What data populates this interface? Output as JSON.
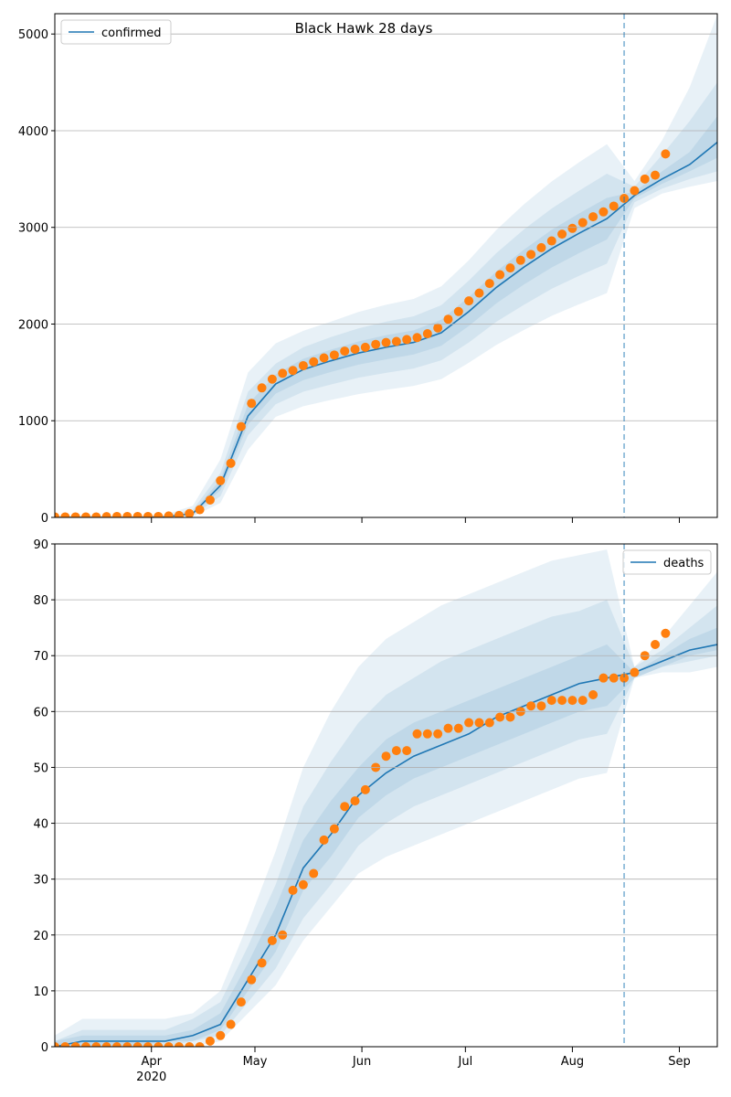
{
  "chart_data": [
    {
      "type": "line",
      "title": "Black Hawk 28 days",
      "x": [
        64,
        72,
        80,
        88,
        96,
        104,
        112,
        120,
        128,
        136,
        144,
        152,
        160,
        168,
        176,
        184,
        192,
        200,
        208,
        216,
        224,
        232,
        240,
        248,
        256
      ],
      "series": [
        {
          "name": "confirmed",
          "color": "#1f77b4",
          "values": [
            0,
            0,
            0,
            0,
            5,
            40,
            330,
            1050,
            1380,
            1530,
            1620,
            1700,
            1760,
            1810,
            1910,
            2130,
            2380,
            2590,
            2780,
            2940,
            3090,
            3330,
            3500,
            3650,
            3880
          ]
        }
      ],
      "bands": [
        {
          "lower": [
            0,
            0,
            0,
            0,
            0,
            10,
            150,
            700,
            1040,
            1150,
            1215,
            1275,
            1320,
            1360,
            1430,
            1600,
            1785,
            1940,
            2085,
            2205,
            2320,
            3200,
            3350,
            3420,
            3480
          ],
          "upper": [
            20,
            20,
            20,
            20,
            30,
            120,
            600,
            1500,
            1800,
            1930,
            2025,
            2125,
            2200,
            2260,
            2390,
            2660,
            2975,
            3240,
            3475,
            3675,
            3860,
            3480,
            3900,
            4450,
            5200
          ]
        },
        {
          "lower": [
            0,
            0,
            0,
            0,
            0,
            20,
            220,
            850,
            1170,
            1300,
            1375,
            1445,
            1495,
            1540,
            1625,
            1810,
            2025,
            2200,
            2365,
            2500,
            2625,
            3260,
            3400,
            3500,
            3580
          ],
          "upper": [
            10,
            10,
            10,
            10,
            15,
            80,
            460,
            1300,
            1590,
            1760,
            1865,
            1955,
            2025,
            2080,
            2195,
            2450,
            2735,
            2980,
            3195,
            3380,
            3555,
            3420,
            3750,
            4100,
            4500
          ]
        },
        {
          "lower": [
            0,
            0,
            0,
            0,
            2,
            30,
            280,
            960,
            1280,
            1420,
            1505,
            1580,
            1635,
            1685,
            1775,
            1980,
            2215,
            2410,
            2585,
            2735,
            2875,
            3300,
            3450,
            3580,
            3720
          ],
          "upper": [
            5,
            5,
            5,
            5,
            10,
            55,
            390,
            1170,
            1480,
            1640,
            1735,
            1820,
            1885,
            1935,
            2045,
            2280,
            2545,
            2770,
            2975,
            3145,
            3305,
            3370,
            3580,
            3780,
            4150
          ]
        }
      ],
      "band_color": "#1f77b4",
      "points": {
        "color": "#ff7f0e",
        "x": [
          64,
          67,
          70,
          73,
          76,
          79,
          82,
          85,
          88,
          91,
          94,
          97,
          100,
          103,
          106,
          109,
          112,
          115,
          118,
          121,
          124,
          127,
          130,
          133,
          136,
          139,
          142,
          145,
          148,
          151,
          154,
          157,
          160,
          163,
          166,
          169,
          172,
          175,
          178,
          181,
          184,
          187,
          190,
          193,
          196,
          199,
          202,
          205,
          208,
          211,
          214,
          217,
          220,
          223,
          226,
          229,
          232,
          235,
          238,
          241
        ],
        "values": [
          5,
          5,
          5,
          5,
          5,
          8,
          10,
          10,
          10,
          10,
          10,
          15,
          20,
          40,
          80,
          180,
          380,
          560,
          940,
          1180,
          1340,
          1430,
          1490,
          1520,
          1570,
          1610,
          1650,
          1680,
          1720,
          1740,
          1760,
          1790,
          1810,
          1820,
          1840,
          1860,
          1900,
          1960,
          2050,
          2130,
          2240,
          2320,
          2420,
          2510,
          2580,
          2660,
          2720,
          2790,
          2860,
          2930,
          2990,
          3050,
          3110,
          3160,
          3220,
          3300,
          3380,
          3500,
          3540,
          3760
        ]
      },
      "vline": 229,
      "xlim": [
        64,
        256
      ],
      "ylim": [
        0,
        5210
      ],
      "yticks": [
        0,
        1000,
        2000,
        3000,
        4000,
        5000
      ],
      "grid": true,
      "legend": "upper left"
    },
    {
      "type": "line",
      "x": [
        64,
        72,
        80,
        88,
        96,
        104,
        112,
        120,
        128,
        136,
        144,
        152,
        160,
        168,
        176,
        184,
        192,
        200,
        208,
        216,
        224,
        232,
        240,
        248,
        256
      ],
      "series": [
        {
          "name": "deaths",
          "color": "#1f77b4",
          "values": [
            0,
            1,
            1,
            1,
            1,
            2,
            4,
            12,
            20,
            32,
            38,
            45,
            49,
            52,
            54,
            56,
            59,
            61,
            63,
            65,
            66,
            67,
            69,
            71,
            72
          ]
        }
      ],
      "bands": [
        {
          "lower": [
            0,
            0,
            0,
            0,
            0,
            0,
            1,
            6,
            11,
            19,
            25,
            31,
            34,
            36,
            38,
            40,
            42,
            44,
            46,
            48,
            49,
            66,
            67,
            67,
            68
          ],
          "upper": [
            2,
            5,
            5,
            5,
            5,
            6,
            10,
            22,
            35,
            50,
            60,
            68,
            73,
            76,
            79,
            81,
            83,
            85,
            87,
            88,
            89,
            68,
            73,
            79,
            85
          ]
        },
        {
          "lower": [
            0,
            0,
            0,
            0,
            0,
            1,
            2,
            8,
            14,
            23,
            29,
            36,
            40,
            43,
            45,
            47,
            49,
            51,
            53,
            55,
            56,
            66,
            68,
            69,
            70
          ],
          "upper": [
            1,
            3,
            3,
            3,
            3,
            5,
            8,
            18,
            29,
            43,
            51,
            58,
            63,
            66,
            69,
            71,
            73,
            75,
            77,
            78,
            80,
            68,
            71,
            75,
            79
          ]
        },
        {
          "lower": [
            0,
            0,
            0,
            0,
            1,
            1,
            3,
            10,
            17,
            28,
            34,
            41,
            45,
            48,
            50,
            52,
            54,
            56,
            58,
            60,
            61,
            66,
            68,
            70,
            71
          ],
          "upper": [
            1,
            2,
            2,
            2,
            2,
            3,
            6,
            15,
            25,
            37,
            44,
            50,
            55,
            58,
            60,
            62,
            64,
            66,
            68,
            70,
            72,
            67,
            70,
            73,
            75
          ]
        }
      ],
      "band_color": "#1f77b4",
      "points": {
        "color": "#ff7f0e",
        "x": [
          64,
          67,
          70,
          73,
          76,
          79,
          82,
          85,
          88,
          91,
          94,
          97,
          100,
          103,
          106,
          109,
          112,
          115,
          118,
          121,
          124,
          127,
          130,
          133,
          136,
          139,
          142,
          145,
          148,
          151,
          154,
          157,
          160,
          163,
          166,
          169,
          172,
          175,
          178,
          181,
          184,
          187,
          190,
          193,
          196,
          199,
          202,
          205,
          208,
          211,
          214,
          217,
          220,
          223,
          226,
          229,
          232,
          235,
          238,
          241
        ],
        "values": [
          0,
          0,
          0,
          0,
          0,
          0,
          0,
          0,
          0,
          0,
          0,
          0,
          0,
          0,
          0,
          1,
          2,
          4,
          8,
          12,
          15,
          19,
          20,
          28,
          29,
          31,
          37,
          39,
          43,
          44,
          46,
          50,
          52,
          53,
          53,
          56,
          56,
          56,
          57,
          57,
          58,
          58,
          58,
          59,
          59,
          60,
          61,
          61,
          62,
          62,
          62,
          62,
          63,
          66,
          66,
          66,
          67,
          70,
          72,
          74
        ]
      },
      "vline": 229,
      "xlim": [
        64,
        256
      ],
      "ylim": [
        0,
        90
      ],
      "yticks": [
        0,
        10,
        20,
        30,
        40,
        50,
        60,
        70,
        80,
        90
      ],
      "xticks": [
        {
          "value": 92,
          "label": "Apr\n2020"
        },
        {
          "value": 122,
          "label": "May"
        },
        {
          "value": 153,
          "label": "Jun"
        },
        {
          "value": 183,
          "label": "Jul"
        },
        {
          "value": 214,
          "label": "Aug"
        },
        {
          "value": 245,
          "label": "Sep"
        }
      ],
      "grid": true,
      "legend": "upper right"
    }
  ]
}
